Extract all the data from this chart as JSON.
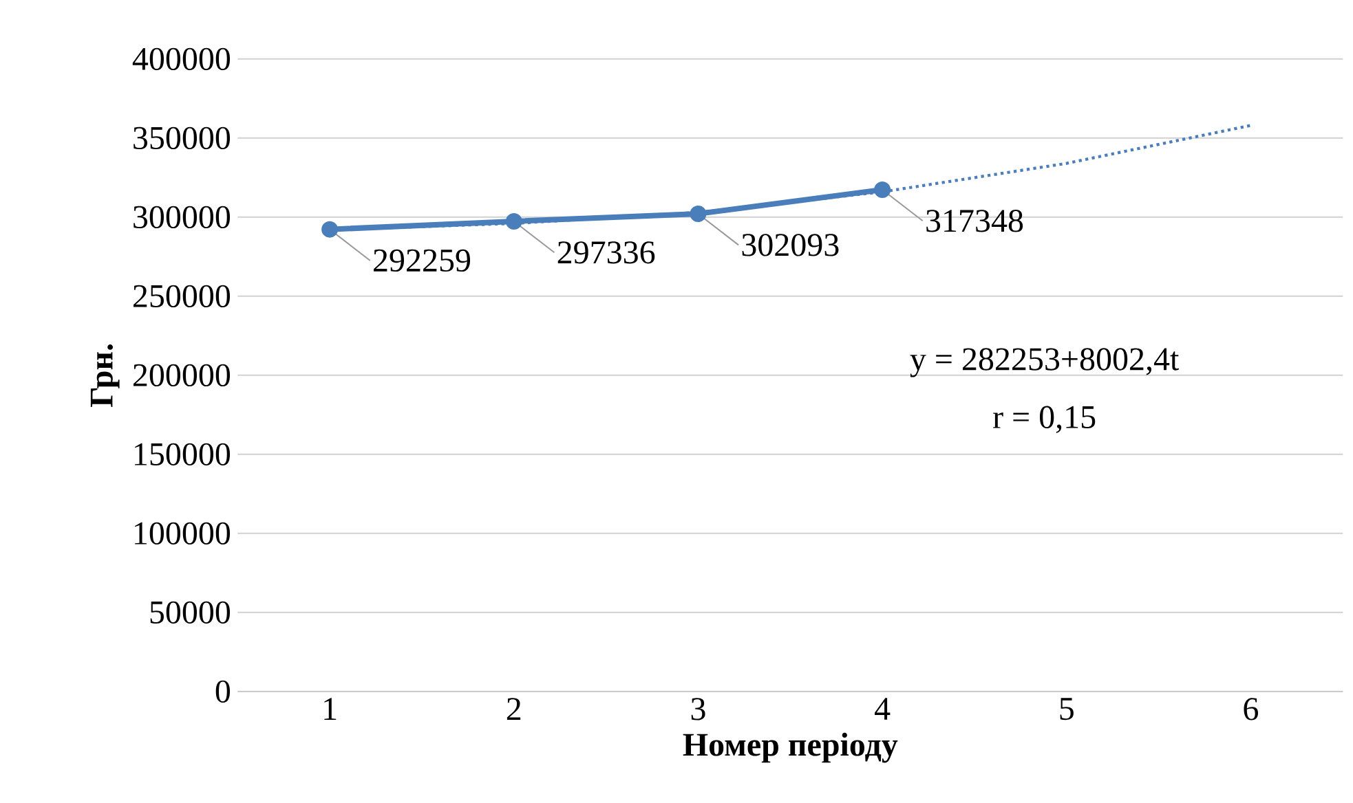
{
  "chart_data": {
    "type": "line",
    "xlabel": "Номер періоду",
    "ylabel": "Грн.",
    "categories": [
      "1",
      "2",
      "3",
      "4",
      "5",
      "6"
    ],
    "series": [
      {
        "color": "#4a7ebb",
        "values": [
          292259,
          297336,
          302093,
          317348,
          null,
          null
        ],
        "marker": "circle",
        "line_style": "solid",
        "value_labels": [
          "292259",
          "297336",
          "302093",
          "317348",
          null,
          null
        ]
      },
      {
        "type": "line",
        "color": "#4a7ebb",
        "values": [
          292000,
          296000,
          303000,
          316000,
          334000,
          358000
        ],
        "marker": "none",
        "line_style": "dotted"
      }
    ],
    "ylim": [
      0,
      400000
    ],
    "yticks": [
      0,
      50000,
      100000,
      150000,
      200000,
      250000,
      300000,
      350000,
      400000
    ],
    "grid": "y",
    "annotations": [
      "y = 282253+8002,4t",
      "r = 0,15"
    ]
  }
}
